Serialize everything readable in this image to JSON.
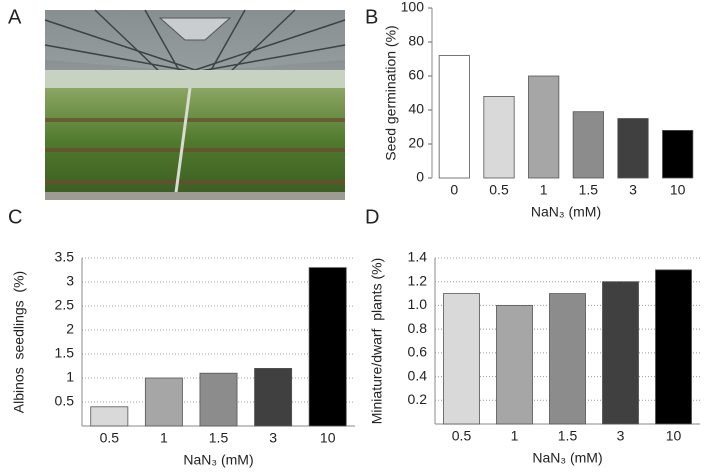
{
  "figure": {
    "photo_label": "A"
  },
  "chart_data": [
    {
      "type": "bar",
      "label": "B",
      "y_label": "Seed germination (%)",
      "x_label": "NaN₃ (mM)",
      "categories": [
        "0",
        "0.5",
        "1",
        "1.5",
        "3",
        "10"
      ],
      "values": [
        72,
        48,
        60,
        39,
        35,
        28
      ],
      "colors": [
        "#ffffff",
        "#d9d9d9",
        "#a6a6a6",
        "#8c8c8c",
        "#404040",
        "#000000"
      ],
      "ylim": [
        0,
        100
      ],
      "yticks": [
        0,
        20,
        40,
        60,
        80,
        100
      ],
      "grid": false
    },
    {
      "type": "bar",
      "label": "C",
      "y_label": "Albinos  seedlings  (%)",
      "x_label": "NaN₃ (mM)",
      "categories": [
        "0.5",
        "1",
        "1.5",
        "3",
        "10"
      ],
      "values": [
        0.4,
        1.0,
        1.1,
        1.2,
        3.3
      ],
      "colors": [
        "#d9d9d9",
        "#a6a6a6",
        "#8c8c8c",
        "#404040",
        "#000000"
      ],
      "ylim": [
        0,
        3.5
      ],
      "yticks": [
        0.5,
        1,
        1.5,
        2,
        2.5,
        3,
        3.5
      ],
      "grid": true
    },
    {
      "type": "bar",
      "label": "D",
      "y_label": "Miniature/dwarf  plants (%)",
      "x_label": "NaN₃ (mM)",
      "categories": [
        "0.5",
        "1",
        "1.5",
        "3",
        "10"
      ],
      "values": [
        1.1,
        1.0,
        1.1,
        1.2,
        1.3
      ],
      "colors": [
        "#d9d9d9",
        "#a6a6a6",
        "#8c8c8c",
        "#404040",
        "#000000"
      ],
      "ylim": [
        0,
        1.4
      ],
      "yticks": [
        0.2,
        0.4,
        0.6,
        0.8,
        {
          "value": 1,
          "label": "1.0"
        },
        1.2,
        1.4
      ],
      "grid": true
    }
  ]
}
